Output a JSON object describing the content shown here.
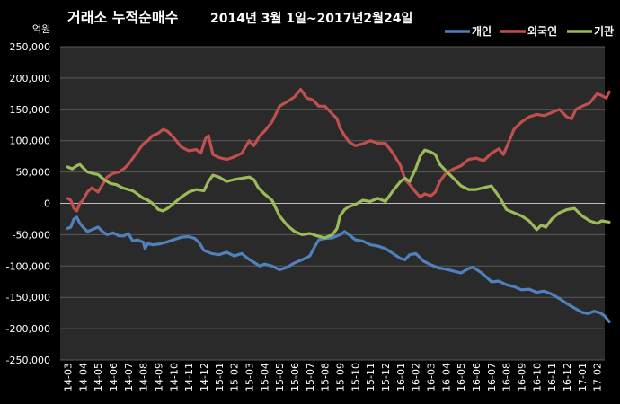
{
  "chart_data": {
    "type": "line",
    "title": "거래소 누적순매수",
    "subtitle": "2014년 3월 1일~2017년2월24일",
    "unit_label": "억원",
    "ylim": [
      -250000,
      250000
    ],
    "y_ticks": [
      -250000,
      -200000,
      -150000,
      -100000,
      -50000,
      0,
      50000,
      100000,
      150000,
      200000,
      250000
    ],
    "y_tick_labels": [
      "-250,000",
      "-200,000",
      "-150,000",
      "-100,000",
      "-50,000",
      "0",
      "50,000",
      "100,000",
      "150,000",
      "200,000",
      "250,000"
    ],
    "grid": true,
    "legend_position": "top-right",
    "categories": [
      "14-03",
      "14-04",
      "14-05",
      "14-06",
      "14-07",
      "14-08",
      "14-09",
      "14-10",
      "14-11",
      "14-12",
      "15-01",
      "15-02",
      "15-03",
      "15-04",
      "15-05",
      "15-06",
      "15-07",
      "15-08",
      "15-09",
      "15-10",
      "15-11",
      "15-12",
      "16-01",
      "16-02",
      "16-03",
      "16-04",
      "16-05",
      "16-06",
      "16-07",
      "16-08",
      "16-09",
      "16-10",
      "16-11",
      "16-12",
      "17-01",
      "17-02"
    ],
    "x_end": 35.8,
    "series": [
      {
        "name": "개인",
        "color": "#4F81BD",
        "points": [
          [
            0,
            -40000
          ],
          [
            0.2,
            -38000
          ],
          [
            0.4,
            -25000
          ],
          [
            0.6,
            -22000
          ],
          [
            0.8,
            -32000
          ],
          [
            1,
            -38000
          ],
          [
            1.3,
            -45000
          ],
          [
            1.6,
            -42000
          ],
          [
            2,
            -38000
          ],
          [
            2.3,
            -45000
          ],
          [
            2.6,
            -50000
          ],
          [
            3,
            -47000
          ],
          [
            3.4,
            -52000
          ],
          [
            3.7,
            -52000
          ],
          [
            4,
            -48000
          ],
          [
            4.3,
            -60000
          ],
          [
            4.6,
            -58000
          ],
          [
            5,
            -62000
          ],
          [
            5.1,
            -72000
          ],
          [
            5.3,
            -64000
          ],
          [
            5.6,
            -66000
          ],
          [
            6,
            -65000
          ],
          [
            6.5,
            -62000
          ],
          [
            7,
            -58000
          ],
          [
            7.5,
            -54000
          ],
          [
            8,
            -53000
          ],
          [
            8.4,
            -56000
          ],
          [
            8.7,
            -63000
          ],
          [
            9,
            -75000
          ],
          [
            9.5,
            -80000
          ],
          [
            10,
            -82000
          ],
          [
            10.5,
            -78000
          ],
          [
            11,
            -84000
          ],
          [
            11.5,
            -80000
          ],
          [
            11.9,
            -88000
          ],
          [
            12.3,
            -94000
          ],
          [
            12.7,
            -100000
          ],
          [
            13,
            -97000
          ],
          [
            13.5,
            -100000
          ],
          [
            14,
            -106000
          ],
          [
            14.5,
            -102000
          ],
          [
            15,
            -95000
          ],
          [
            15.5,
            -90000
          ],
          [
            16,
            -84000
          ],
          [
            16.3,
            -70000
          ],
          [
            16.6,
            -58000
          ],
          [
            17,
            -56000
          ],
          [
            17.5,
            -55000
          ],
          [
            18,
            -50000
          ],
          [
            18.3,
            -45000
          ],
          [
            18.6,
            -50000
          ],
          [
            19,
            -58000
          ],
          [
            19.5,
            -60000
          ],
          [
            20,
            -66000
          ],
          [
            20.5,
            -68000
          ],
          [
            21,
            -72000
          ],
          [
            21.5,
            -80000
          ],
          [
            22,
            -88000
          ],
          [
            22.3,
            -90000
          ],
          [
            22.6,
            -82000
          ],
          [
            23,
            -80000
          ],
          [
            23.5,
            -92000
          ],
          [
            24,
            -98000
          ],
          [
            24.5,
            -103000
          ],
          [
            25,
            -105000
          ],
          [
            25.5,
            -108000
          ],
          [
            26,
            -111000
          ],
          [
            26.5,
            -104000
          ],
          [
            26.8,
            -102000
          ],
          [
            27.3,
            -110000
          ],
          [
            27.7,
            -118000
          ],
          [
            28,
            -125000
          ],
          [
            28.5,
            -124000
          ],
          [
            29,
            -130000
          ],
          [
            29.5,
            -133000
          ],
          [
            30,
            -138000
          ],
          [
            30.5,
            -137000
          ],
          [
            31,
            -142000
          ],
          [
            31.5,
            -140000
          ],
          [
            32,
            -145000
          ],
          [
            32.5,
            -152000
          ],
          [
            33,
            -160000
          ],
          [
            33.5,
            -167000
          ],
          [
            34,
            -174000
          ],
          [
            34.4,
            -176000
          ],
          [
            34.8,
            -172000
          ],
          [
            35.2,
            -175000
          ],
          [
            35.5,
            -180000
          ],
          [
            35.8,
            -189000
          ]
        ]
      },
      {
        "name": "외국인",
        "color": "#C0504D",
        "points": [
          [
            0,
            8000
          ],
          [
            0.2,
            5000
          ],
          [
            0.4,
            -8000
          ],
          [
            0.6,
            -12000
          ],
          [
            0.8,
            0
          ],
          [
            1,
            5000
          ],
          [
            1.3,
            18000
          ],
          [
            1.6,
            25000
          ],
          [
            2,
            18000
          ],
          [
            2.3,
            30000
          ],
          [
            2.6,
            42000
          ],
          [
            3,
            48000
          ],
          [
            3.4,
            50000
          ],
          [
            3.7,
            55000
          ],
          [
            4,
            62000
          ],
          [
            4.3,
            72000
          ],
          [
            4.6,
            82000
          ],
          [
            5,
            95000
          ],
          [
            5.3,
            100000
          ],
          [
            5.6,
            108000
          ],
          [
            6,
            112000
          ],
          [
            6.3,
            118000
          ],
          [
            6.6,
            115000
          ],
          [
            7,
            105000
          ],
          [
            7.5,
            90000
          ],
          [
            8,
            84000
          ],
          [
            8.5,
            86000
          ],
          [
            8.8,
            80000
          ],
          [
            9.1,
            103000
          ],
          [
            9.3,
            108000
          ],
          [
            9.6,
            78000
          ],
          [
            10,
            73000
          ],
          [
            10.5,
            70000
          ],
          [
            11,
            74000
          ],
          [
            11.5,
            80000
          ],
          [
            12,
            100000
          ],
          [
            12.3,
            92000
          ],
          [
            12.7,
            108000
          ],
          [
            13,
            115000
          ],
          [
            13.5,
            130000
          ],
          [
            14,
            155000
          ],
          [
            14.5,
            162000
          ],
          [
            15,
            170000
          ],
          [
            15.4,
            182000
          ],
          [
            15.8,
            168000
          ],
          [
            16.2,
            165000
          ],
          [
            16.6,
            155000
          ],
          [
            17,
            155000
          ],
          [
            17.4,
            145000
          ],
          [
            17.8,
            135000
          ],
          [
            18,
            120000
          ],
          [
            18.3,
            108000
          ],
          [
            18.6,
            98000
          ],
          [
            19,
            92000
          ],
          [
            19.5,
            95000
          ],
          [
            20,
            100000
          ],
          [
            20.5,
            96000
          ],
          [
            21,
            96000
          ],
          [
            21.5,
            80000
          ],
          [
            22,
            60000
          ],
          [
            22.3,
            38000
          ],
          [
            22.6,
            30000
          ],
          [
            23,
            18000
          ],
          [
            23.3,
            10000
          ],
          [
            23.6,
            15000
          ],
          [
            24,
            12000
          ],
          [
            24.3,
            18000
          ],
          [
            24.6,
            35000
          ],
          [
            25,
            48000
          ],
          [
            25.5,
            55000
          ],
          [
            26,
            60000
          ],
          [
            26.5,
            70000
          ],
          [
            27,
            72000
          ],
          [
            27.5,
            68000
          ],
          [
            28,
            80000
          ],
          [
            28.5,
            87000
          ],
          [
            28.8,
            78000
          ],
          [
            29.2,
            100000
          ],
          [
            29.5,
            118000
          ],
          [
            30,
            130000
          ],
          [
            30.5,
            138000
          ],
          [
            31,
            142000
          ],
          [
            31.5,
            140000
          ],
          [
            32,
            145000
          ],
          [
            32.5,
            150000
          ],
          [
            33,
            138000
          ],
          [
            33.3,
            135000
          ],
          [
            33.6,
            150000
          ],
          [
            34,
            155000
          ],
          [
            34.5,
            160000
          ],
          [
            35,
            175000
          ],
          [
            35.3,
            172000
          ],
          [
            35.6,
            168000
          ],
          [
            35.8,
            178000
          ]
        ]
      },
      {
        "name": "기관",
        "color": "#9BBB59",
        "points": [
          [
            0,
            58000
          ],
          [
            0.3,
            55000
          ],
          [
            0.6,
            60000
          ],
          [
            0.8,
            62000
          ],
          [
            1,
            57000
          ],
          [
            1.3,
            50000
          ],
          [
            1.6,
            48000
          ],
          [
            2,
            46000
          ],
          [
            2.4,
            38000
          ],
          [
            2.8,
            32000
          ],
          [
            3.2,
            30000
          ],
          [
            3.6,
            25000
          ],
          [
            4,
            22000
          ],
          [
            4.3,
            20000
          ],
          [
            4.6,
            15000
          ],
          [
            5,
            8000
          ],
          [
            5.3,
            5000
          ],
          [
            5.6,
            0
          ],
          [
            6,
            -10000
          ],
          [
            6.3,
            -12000
          ],
          [
            6.6,
            -8000
          ],
          [
            7,
            0
          ],
          [
            7.5,
            10000
          ],
          [
            8,
            18000
          ],
          [
            8.5,
            22000
          ],
          [
            9,
            20000
          ],
          [
            9.3,
            35000
          ],
          [
            9.6,
            45000
          ],
          [
            10,
            42000
          ],
          [
            10.5,
            35000
          ],
          [
            11,
            38000
          ],
          [
            11.5,
            40000
          ],
          [
            12,
            42000
          ],
          [
            12.3,
            38000
          ],
          [
            12.6,
            25000
          ],
          [
            13,
            15000
          ],
          [
            13.5,
            5000
          ],
          [
            14,
            -20000
          ],
          [
            14.5,
            -35000
          ],
          [
            15,
            -45000
          ],
          [
            15.5,
            -50000
          ],
          [
            16,
            -48000
          ],
          [
            16.5,
            -52000
          ],
          [
            17,
            -55000
          ],
          [
            17.5,
            -50000
          ],
          [
            17.8,
            -40000
          ],
          [
            18,
            -20000
          ],
          [
            18.3,
            -10000
          ],
          [
            18.6,
            -5000
          ],
          [
            19,
            -2000
          ],
          [
            19.5,
            5000
          ],
          [
            20,
            3000
          ],
          [
            20.5,
            8000
          ],
          [
            21,
            3000
          ],
          [
            21.5,
            20000
          ],
          [
            22,
            35000
          ],
          [
            22.3,
            40000
          ],
          [
            22.6,
            35000
          ],
          [
            23,
            55000
          ],
          [
            23.3,
            75000
          ],
          [
            23.6,
            85000
          ],
          [
            24,
            82000
          ],
          [
            24.3,
            78000
          ],
          [
            24.6,
            62000
          ],
          [
            25,
            52000
          ],
          [
            25.5,
            40000
          ],
          [
            26,
            28000
          ],
          [
            26.5,
            22000
          ],
          [
            27,
            22000
          ],
          [
            27.5,
            25000
          ],
          [
            28,
            28000
          ],
          [
            28.3,
            18000
          ],
          [
            28.6,
            8000
          ],
          [
            29,
            -10000
          ],
          [
            29.5,
            -15000
          ],
          [
            30,
            -20000
          ],
          [
            30.5,
            -28000
          ],
          [
            31,
            -42000
          ],
          [
            31.3,
            -35000
          ],
          [
            31.6,
            -38000
          ],
          [
            32,
            -25000
          ],
          [
            32.5,
            -15000
          ],
          [
            33,
            -10000
          ],
          [
            33.5,
            -8000
          ],
          [
            34,
            -20000
          ],
          [
            34.5,
            -28000
          ],
          [
            35,
            -32000
          ],
          [
            35.3,
            -28000
          ],
          [
            35.8,
            -30000
          ]
        ]
      }
    ]
  }
}
